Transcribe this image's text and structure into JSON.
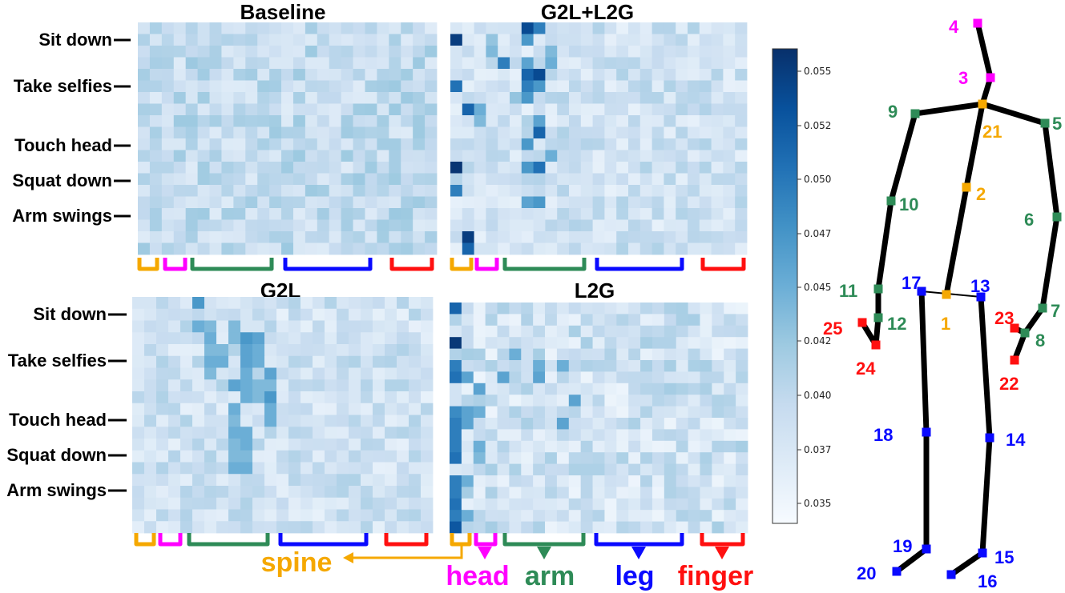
{
  "chart_data": {
    "type": "heatmap",
    "panels": [
      {
        "key": "baseline",
        "title": "Baseline",
        "level": 0.25,
        "spread": 0.13,
        "row_labels": [
          "Sit down",
          "Take selfies",
          "Touch head",
          "Squat down",
          "Arm swings"
        ]
      },
      {
        "key": "g2l_l2g",
        "title": "G2L+L2G",
        "level": 0.2,
        "spread": 0.12,
        "row_labels": []
      },
      {
        "key": "g2l",
        "title": "G2L",
        "level": 0.2,
        "spread": 0.12,
        "row_labels": [
          "Sit down",
          "Take selfies",
          "Touch head",
          "Squat down",
          "Arm swings"
        ]
      },
      {
        "key": "l2g",
        "title": "L2G",
        "level": 0.2,
        "spread": 0.15,
        "row_labels": []
      }
    ],
    "colorbar": {
      "colormap": "Blues",
      "range": [
        0.034,
        0.056
      ],
      "ticks": [
        "0.055",
        "0.052",
        "0.050",
        "0.047",
        "0.045",
        "0.042",
        "0.040",
        "0.037",
        "0.035"
      ]
    },
    "joint_groups": [
      {
        "name": "spine",
        "color": "#f5a800"
      },
      {
        "name": "head",
        "color": "#ff00ff"
      },
      {
        "name": "arm",
        "color": "#2e8b57"
      },
      {
        "name": "leg",
        "color": "#0a0aff"
      },
      {
        "name": "finger",
        "color": "#ff1010"
      }
    ],
    "skeleton_joints": [
      {
        "id": "1",
        "group": "spine"
      },
      {
        "id": "2",
        "group": "spine"
      },
      {
        "id": "21",
        "group": "spine"
      },
      {
        "id": "3",
        "group": "head"
      },
      {
        "id": "4",
        "group": "head"
      },
      {
        "id": "5",
        "group": "arm"
      },
      {
        "id": "6",
        "group": "arm"
      },
      {
        "id": "7",
        "group": "arm"
      },
      {
        "id": "8",
        "group": "arm"
      },
      {
        "id": "9",
        "group": "arm"
      },
      {
        "id": "10",
        "group": "arm"
      },
      {
        "id": "11",
        "group": "arm"
      },
      {
        "id": "12",
        "group": "arm"
      },
      {
        "id": "13",
        "group": "leg"
      },
      {
        "id": "14",
        "group": "leg"
      },
      {
        "id": "15",
        "group": "leg"
      },
      {
        "id": "16",
        "group": "leg"
      },
      {
        "id": "17",
        "group": "leg"
      },
      {
        "id": "18",
        "group": "leg"
      },
      {
        "id": "19",
        "group": "leg"
      },
      {
        "id": "20",
        "group": "leg"
      },
      {
        "id": "22",
        "group": "finger"
      },
      {
        "id": "23",
        "group": "finger"
      },
      {
        "id": "24",
        "group": "finger"
      },
      {
        "id": "25",
        "group": "finger"
      }
    ]
  }
}
